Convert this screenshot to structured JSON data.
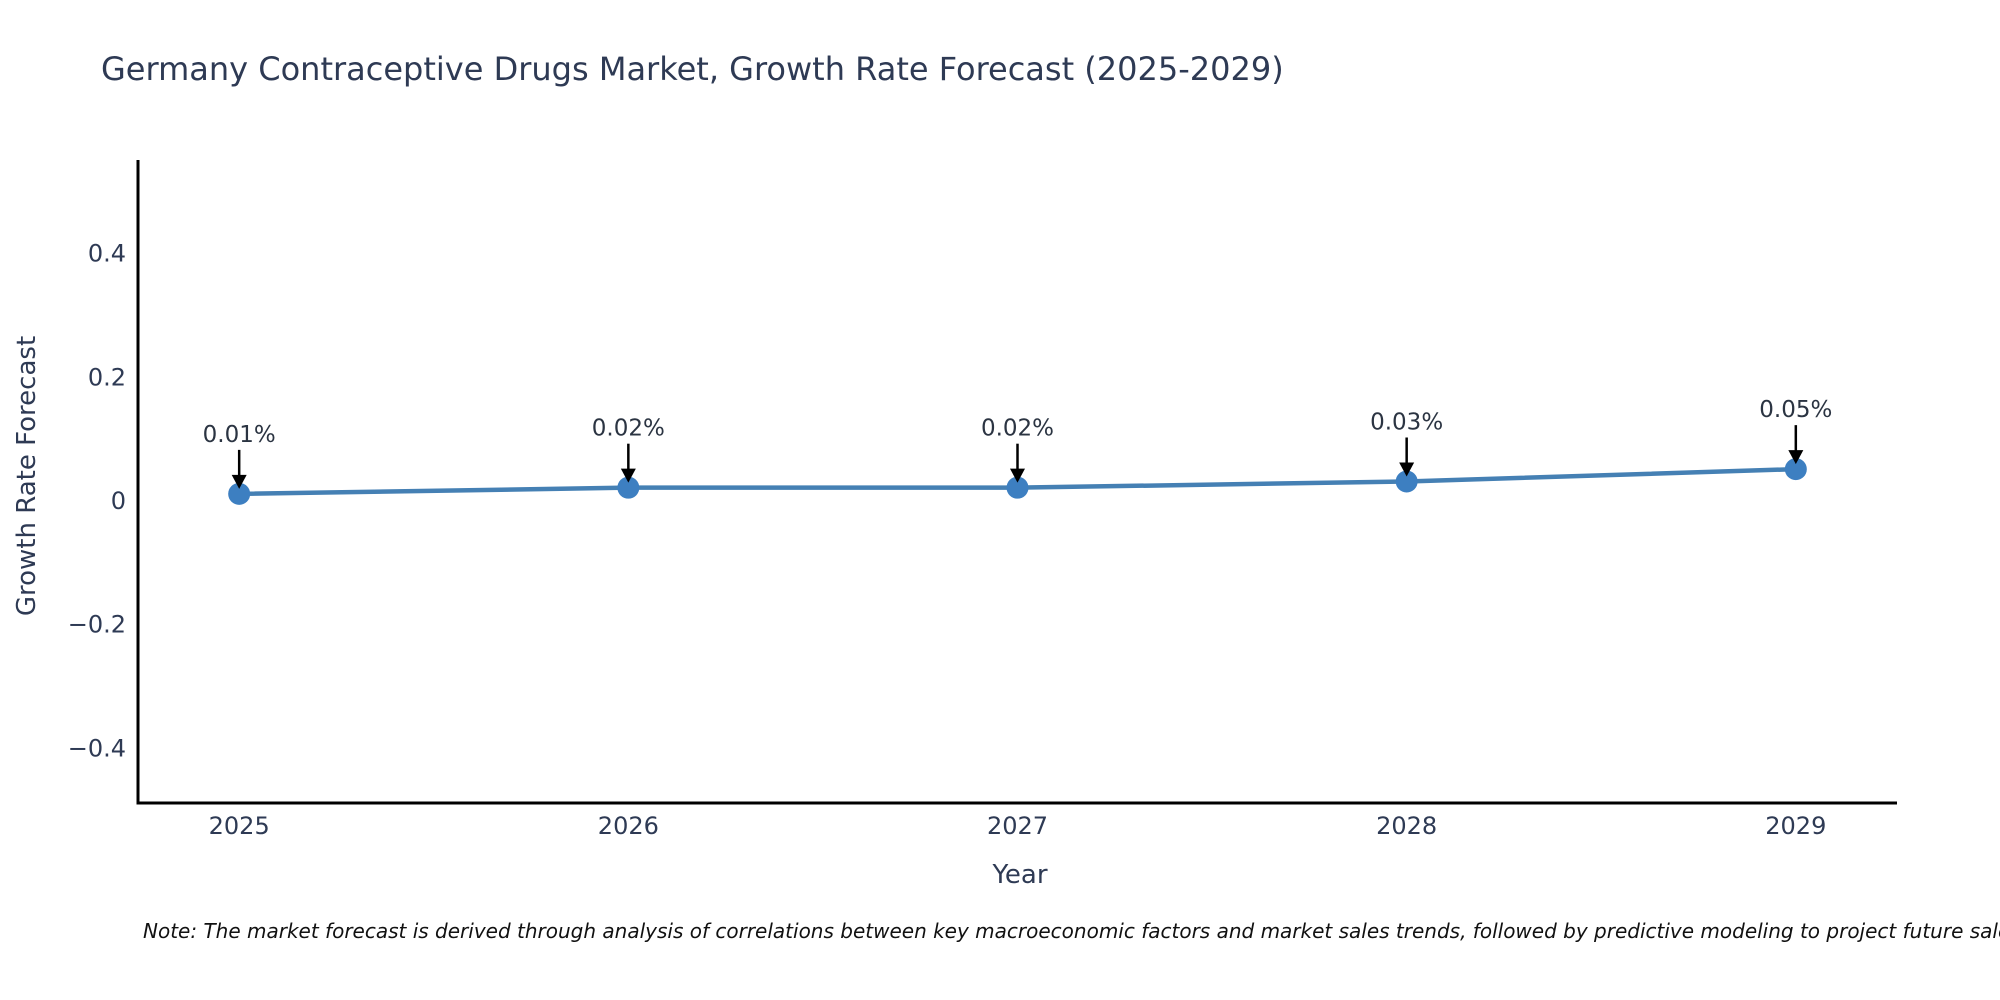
{
  "title": "Germany Contraceptive Drugs Market, Growth Rate Forecast (2025-2029)",
  "note": "Note: The market forecast is derived through analysis of correlations between key macroeconomic factors and market sales trends, followed by predictive modeling to project future sales.",
  "chart_data": {
    "type": "line",
    "title": "Germany Contraceptive Drugs Market, Growth Rate Forecast (2025-2029)",
    "xlabel": "Year",
    "ylabel": "Growth Rate Forecast",
    "x": [
      2025,
      2026,
      2027,
      2028,
      2029
    ],
    "values": [
      0.01,
      0.02,
      0.02,
      0.03,
      0.05
    ],
    "point_labels": [
      "0.01%",
      "0.02%",
      "0.02%",
      "0.03%",
      "0.05%"
    ],
    "series_name": "Growth Rate Forecast",
    "xlim": [
      2024.74,
      2029.26
    ],
    "ylim": [
      -0.49,
      0.55
    ],
    "yticks": {
      "values": [
        -0.4,
        -0.2,
        0,
        0.2,
        0.4
      ],
      "labels": [
        "−0.4",
        "−0.2",
        "0",
        "0.2",
        "0.4"
      ]
    },
    "xticks": {
      "values": [
        2025,
        2026,
        2027,
        2028,
        2029
      ],
      "labels": [
        "2025",
        "2026",
        "2027",
        "2028",
        "2029"
      ]
    },
    "grid": false,
    "legend_position": "none",
    "colors": {
      "line": "#4580b4",
      "marker": "#3d7fc1",
      "axis": "#000000",
      "arrow": "#000000",
      "text": "#2e3a54",
      "note_text": "#111111",
      "background": "#ffffff"
    }
  }
}
